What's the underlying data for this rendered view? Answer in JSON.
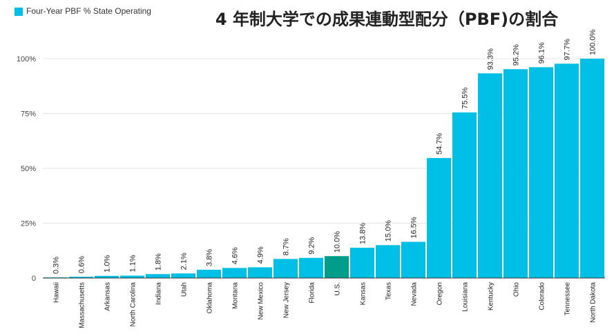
{
  "legend": {
    "label": "Four-Year PBF % State Operating",
    "color": "#00bfe6"
  },
  "colors": {
    "bar": "#00bfe6",
    "highlight": "#009e8a",
    "grid": "#e6e6e6",
    "axis": "#333333"
  },
  "chart_data": {
    "type": "bar",
    "title": "4 年制大学での成果連動型配分（PBF)の割合",
    "xlabel": "",
    "ylabel": "",
    "ylim": [
      0,
      100
    ],
    "yticks": [
      {
        "value": 0,
        "label": "0"
      },
      {
        "value": 25,
        "label": "25%"
      },
      {
        "value": 50,
        "label": "50%"
      },
      {
        "value": 75,
        "label": "75%"
      },
      {
        "value": 100,
        "label": "100%"
      }
    ],
    "legend_position": "top-left",
    "grid": true,
    "highlight_category": "U.S.",
    "categories": [
      "Hawaii",
      "Massachusetts",
      "Arkansas",
      "North Carolina",
      "Indiana",
      "Utah",
      "Oklahoma",
      "Montana",
      "New Mexico",
      "New Jersey",
      "Florida",
      "U.S.",
      "Kansas",
      "Texas",
      "Nevada",
      "Oregon",
      "Louisiana",
      "Kentucky",
      "Ohio",
      "Colorado",
      "Tennessee",
      "North Dakota"
    ],
    "series": [
      {
        "name": "Four-Year PBF % State Operating",
        "values": [
          0.3,
          0.6,
          1.0,
          1.1,
          1.8,
          2.1,
          3.8,
          4.6,
          4.9,
          8.7,
          9.2,
          10.0,
          13.8,
          15.0,
          16.5,
          54.7,
          75.5,
          93.3,
          95.2,
          96.1,
          97.7,
          100.0
        ],
        "labels": [
          "0.3%",
          "0.6%",
          "1.0%",
          "1.1%",
          "1.8%",
          "2.1%",
          "3.8%",
          "4.6%",
          "4.9%",
          "8.7%",
          "9.2%",
          "10.0%",
          "13.8%",
          "15.0%",
          "16.5%",
          "54.7%",
          "75.5%",
          "93.3%",
          "95.2%",
          "96.1%",
          "97.7%",
          "100.0%"
        ]
      }
    ]
  }
}
